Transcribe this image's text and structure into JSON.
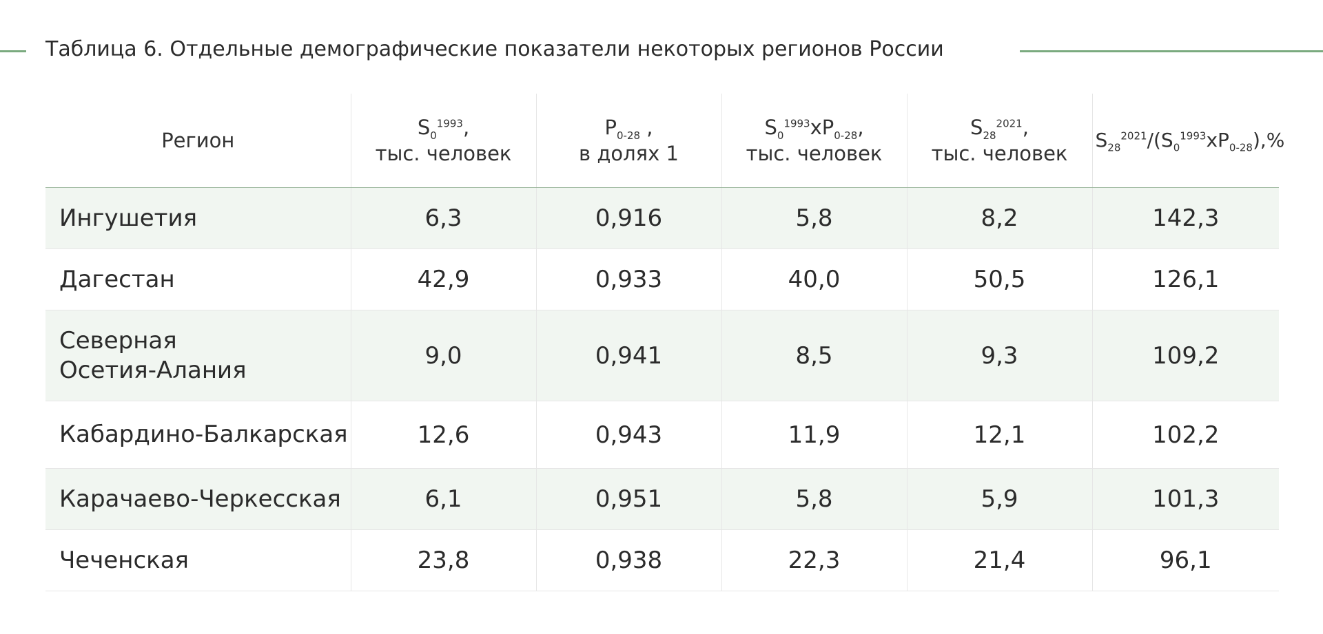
{
  "title": "Таблица 6. Отдельные демографические показатели некоторых регионов России",
  "accent_color": "#7aaa7f",
  "row_shade_color": "#f1f6f1",
  "headers": {
    "region": "Регион",
    "col1": {
      "base": "S",
      "sub": "0",
      "sup": "1993",
      "tail": ",",
      "line2": "тыс. человек"
    },
    "col2": {
      "base": "P",
      "sub": "0-28",
      "tail": " ,",
      "line2": "в долях 1"
    },
    "col3": {
      "base1": "S",
      "sub1": "0",
      "sup1": "1993",
      "mid": "xP",
      "sub2": "0-28",
      "tail": ",",
      "line2": "тыс. человек"
    },
    "col4": {
      "base": "S",
      "sub": "28",
      "sup": "2021",
      "tail": ",",
      "line2": "тыс. человек"
    },
    "col5": {
      "base1": "S",
      "sub1": "28",
      "sup1": "2021",
      "mid1": "/(S",
      "sub2": "0",
      "sup2": "1993",
      "mid2": "xP",
      "sub3": "0-28",
      "tail": "),%"
    }
  },
  "rows": [
    {
      "region_line1": "Ингушетия",
      "region_line2": "",
      "s0_1993": "6,3",
      "p_0_28": "0,916",
      "s0_x_p": "5,8",
      "s28_2021": "8,2",
      "ratio_pct": "142,3"
    },
    {
      "region_line1": "Дагестан",
      "region_line2": "",
      "s0_1993": "42,9",
      "p_0_28": "0,933",
      "s0_x_p": "40,0",
      "s28_2021": "50,5",
      "ratio_pct": "126,1"
    },
    {
      "region_line1": "Северная",
      "region_line2": "Осетия-Алания",
      "s0_1993": "9,0",
      "p_0_28": "0,941",
      "s0_x_p": "8,5",
      "s28_2021": "9,3",
      "ratio_pct": "109,2"
    },
    {
      "region_line1": "Кабардино-Балкарская",
      "region_line2": "",
      "s0_1993": "12,6",
      "p_0_28": "0,943",
      "s0_x_p": "11,9",
      "s28_2021": "12,1",
      "ratio_pct": "102,2"
    },
    {
      "region_line1": "Карачаево-Черкесская",
      "region_line2": "",
      "s0_1993": "6,1",
      "p_0_28": "0,951",
      "s0_x_p": "5,8",
      "s28_2021": "5,9",
      "ratio_pct": "101,3"
    },
    {
      "region_line1": "Чеченская",
      "region_line2": "",
      "s0_1993": "23,8",
      "p_0_28": "0,938",
      "s0_x_p": "22,3",
      "s28_2021": "21,4",
      "ratio_pct": "96,1"
    }
  ]
}
